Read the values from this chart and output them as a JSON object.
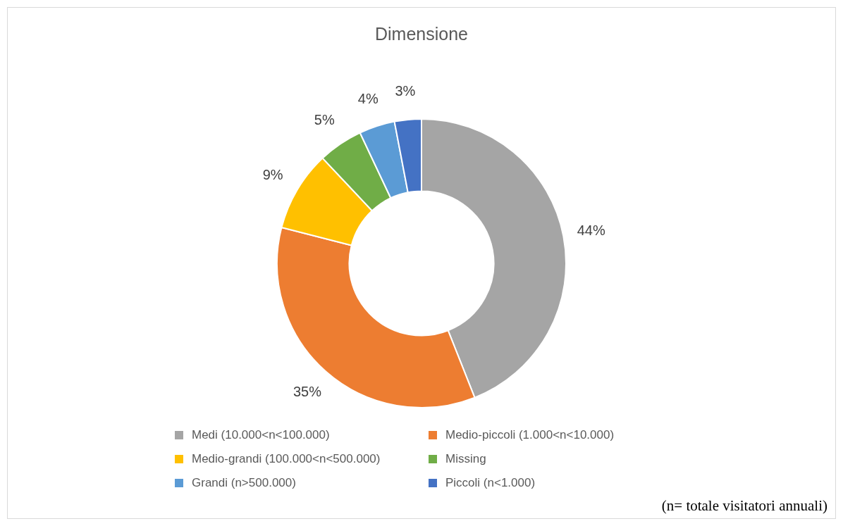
{
  "chart_data": {
    "type": "donut",
    "title": "Dimensione",
    "categories": [
      "Medi (10.000<n<100.000)",
      "Medio-piccoli (1.000<n<10.000)",
      "Medio-grandi (100.000<n<500.000)",
      "Missing",
      "Grandi (n>500.000)",
      "Piccoli (n<1.000)"
    ],
    "values": [
      44,
      35,
      9,
      5,
      4,
      3
    ],
    "colors": [
      "#a5a5a5",
      "#ed7d31",
      "#ffc000",
      "#70ad47",
      "#5b9bd5",
      "#4472c4"
    ],
    "value_labels": [
      "44%",
      "35%",
      "9%",
      "5%",
      "4%",
      "3%"
    ],
    "legend": "bottom",
    "annotations": [
      "(n= totale visitatori annuali)"
    ]
  }
}
